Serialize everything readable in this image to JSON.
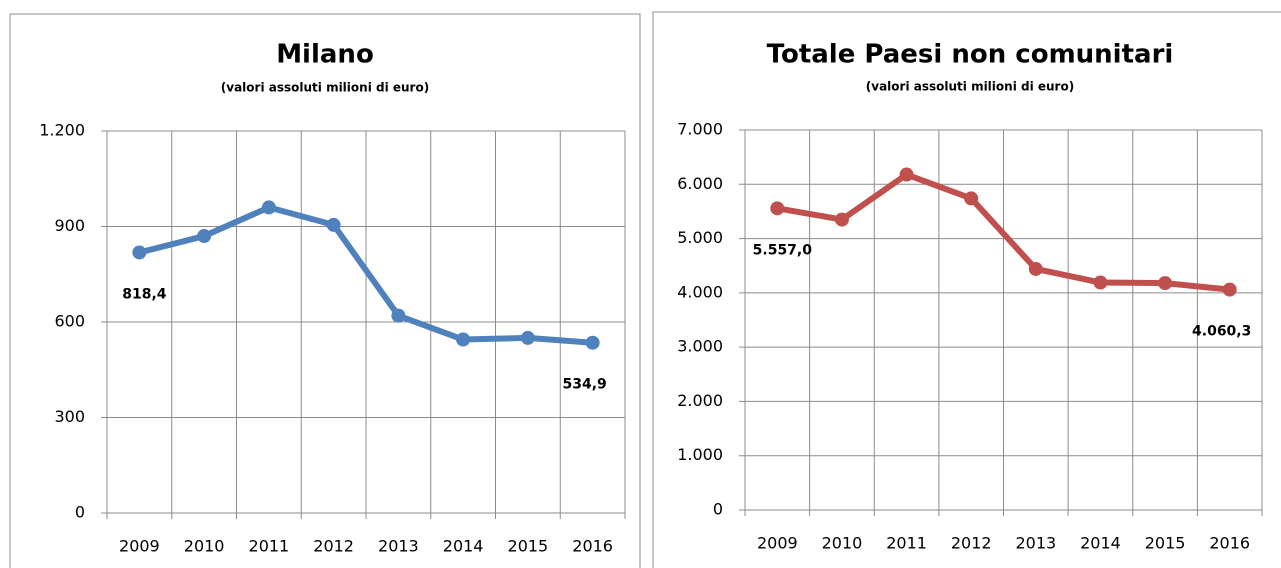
{
  "chart_data": [
    {
      "type": "line",
      "title": "Milano",
      "subtitle": "(valori assoluti milioni di euro)",
      "categories": [
        "2009",
        "2010",
        "2011",
        "2012",
        "2013",
        "2014",
        "2015",
        "2016"
      ],
      "series": [
        {
          "name": "Milano",
          "color": "#4f81bd",
          "values": [
            818.4,
            870,
            960,
            905,
            620,
            545,
            550,
            534.9
          ],
          "value_labels": [
            "818,4",
            null,
            null,
            null,
            null,
            null,
            null,
            "534,9"
          ]
        }
      ],
      "ylim": [
        0,
        1200
      ],
      "yticks": [
        0,
        300,
        600,
        900,
        {
          "value": 1200,
          "label": "1.200"
        }
      ],
      "grid": true
    },
    {
      "type": "line",
      "title": "Totale Paesi non comunitari",
      "subtitle": "(valori assoluti milioni di euro)",
      "categories": [
        "2009",
        "2010",
        "2011",
        "2012",
        "2013",
        "2014",
        "2015",
        "2016"
      ],
      "series": [
        {
          "name": "Totale Paesi non comunitari",
          "color": "#c0504d",
          "values": [
            5557.0,
            5350,
            6180,
            5740,
            4440,
            4190,
            4180,
            4060.3
          ],
          "value_labels": [
            "5.557,0",
            null,
            null,
            null,
            null,
            null,
            null,
            "4.060,3"
          ]
        }
      ],
      "ylim": [
        0,
        7000
      ],
      "yticks": [
        0,
        {
          "value": 1000,
          "label": "1.000"
        },
        {
          "value": 2000,
          "label": "2.000"
        },
        {
          "value": 3000,
          "label": "3.000"
        },
        {
          "value": 4000,
          "label": "4.000"
        },
        {
          "value": 5000,
          "label": "5.000"
        },
        {
          "value": 6000,
          "label": "6.000"
        },
        {
          "value": 7000,
          "label": "7.000"
        }
      ],
      "grid": true
    }
  ]
}
